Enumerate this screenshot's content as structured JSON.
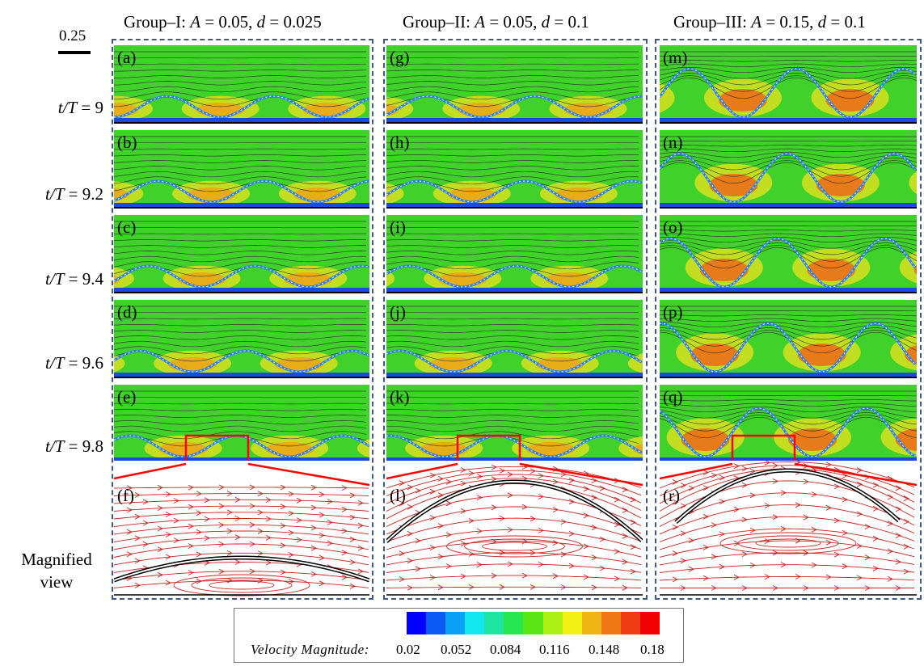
{
  "groups": [
    {
      "name": "Group–I:",
      "a_sym": "A",
      "a_eq": " = 0.05,",
      "d_sym": "d",
      "d_eq": " = 0.025"
    },
    {
      "name": "Group–II:",
      "a_sym": "A",
      "a_eq": " = 0.05,",
      "d_sym": "d",
      "d_eq": " = 0.1"
    },
    {
      "name": "Group–III:",
      "a_sym": "A",
      "a_eq": " = 0.15,",
      "d_sym": "d",
      "d_eq": " = 0.1"
    }
  ],
  "scale": {
    "label": "0.25"
  },
  "rows": [
    {
      "sym": "t/T",
      "eq": " = 9"
    },
    {
      "sym": "t/T",
      "eq": " = 9.2"
    },
    {
      "sym": "t/T",
      "eq": " = 9.4"
    },
    {
      "sym": "t/T",
      "eq": " = 9.6"
    },
    {
      "sym": "t/T",
      "eq": " = 9.8"
    }
  ],
  "magnified": {
    "line1": "Magnified",
    "line2": "view"
  },
  "panel_labels": [
    [
      "(a)",
      "(b)",
      "(c)",
      "(d)",
      "(e)",
      "(f)"
    ],
    [
      "(g)",
      "(h)",
      "(i)",
      "(j)",
      "(k)",
      "(l)"
    ],
    [
      "(m)",
      "(n)",
      "(o)",
      "(p)",
      "(q)",
      "(r)"
    ]
  ],
  "colorbar": {
    "title": "Velocity Magnitude:",
    "ticks": [
      "0.02",
      "0.052",
      "0.084",
      "0.116",
      "0.148",
      "0.18"
    ],
    "colors": [
      "#0000ff",
      "#0a5af5",
      "#0aa0f5",
      "#14e6f0",
      "#1ee6a0",
      "#28e650",
      "#5ae614",
      "#aaf014",
      "#f0f014",
      "#f0b414",
      "#f07814",
      "#f03c14",
      "#f00000"
    ]
  },
  "colors": {
    "field": "#40d22a",
    "frame": "#3e5a7e",
    "zoom_box": "#ff0000",
    "streamline_mag": "#cc2222"
  }
}
